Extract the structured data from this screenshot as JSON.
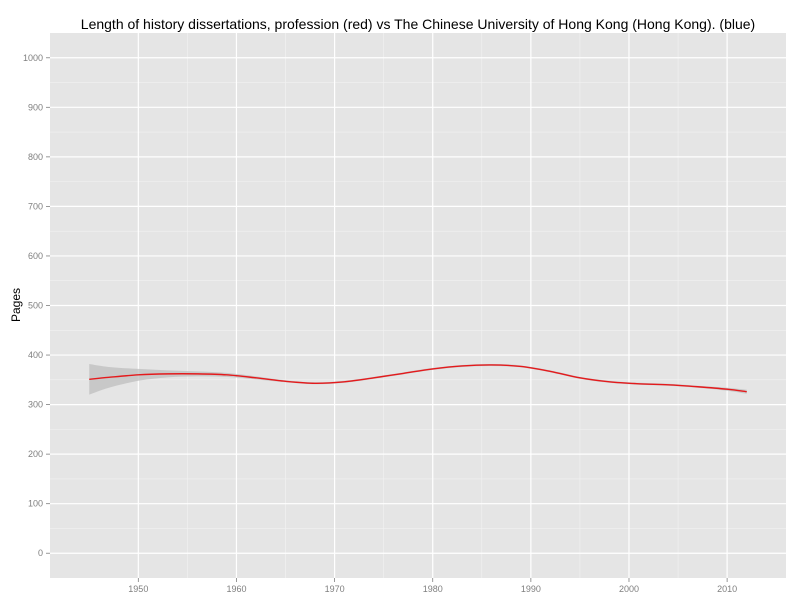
{
  "chart_data": {
    "type": "line",
    "title": "Length of history dissertations, profession (red) vs The Chinese University of Hong Kong (Hong Kong). (blue)",
    "xlabel": "",
    "ylabel": "Pages",
    "xlim": [
      1941,
      2016
    ],
    "ylim": [
      -50,
      1050
    ],
    "x_ticks": [
      1950,
      1960,
      1970,
      1980,
      1990,
      2000,
      2010
    ],
    "y_ticks": [
      0,
      100,
      200,
      300,
      400,
      500,
      600,
      700,
      800,
      900,
      1000
    ],
    "grid": true,
    "series": [
      {
        "color": "#e41a1c",
        "x": [
          1945,
          1947,
          1950,
          1953,
          1956,
          1959,
          1962,
          1965,
          1968,
          1971,
          1974,
          1977,
          1980,
          1983,
          1986,
          1989,
          1992,
          1995,
          1998,
          2001,
          2004,
          2007,
          2010,
          2012
        ],
        "y": [
          351,
          355,
          360,
          362,
          362,
          360,
          354,
          347,
          343,
          346,
          354,
          363,
          372,
          378,
          380,
          377,
          367,
          354,
          346,
          342,
          340,
          336,
          331,
          326
        ],
        "ci_lower": [
          320,
          334,
          348,
          355,
          357,
          356,
          351,
          345,
          341,
          344,
          352,
          361,
          370,
          376,
          378,
          375,
          365,
          352,
          344,
          340,
          338,
          334,
          328,
          322
        ],
        "ci_upper": [
          382,
          376,
          372,
          369,
          367,
          364,
          357,
          349,
          345,
          348,
          356,
          365,
          374,
          380,
          382,
          379,
          369,
          356,
          348,
          344,
          342,
          338,
          334,
          330
        ]
      }
    ]
  }
}
